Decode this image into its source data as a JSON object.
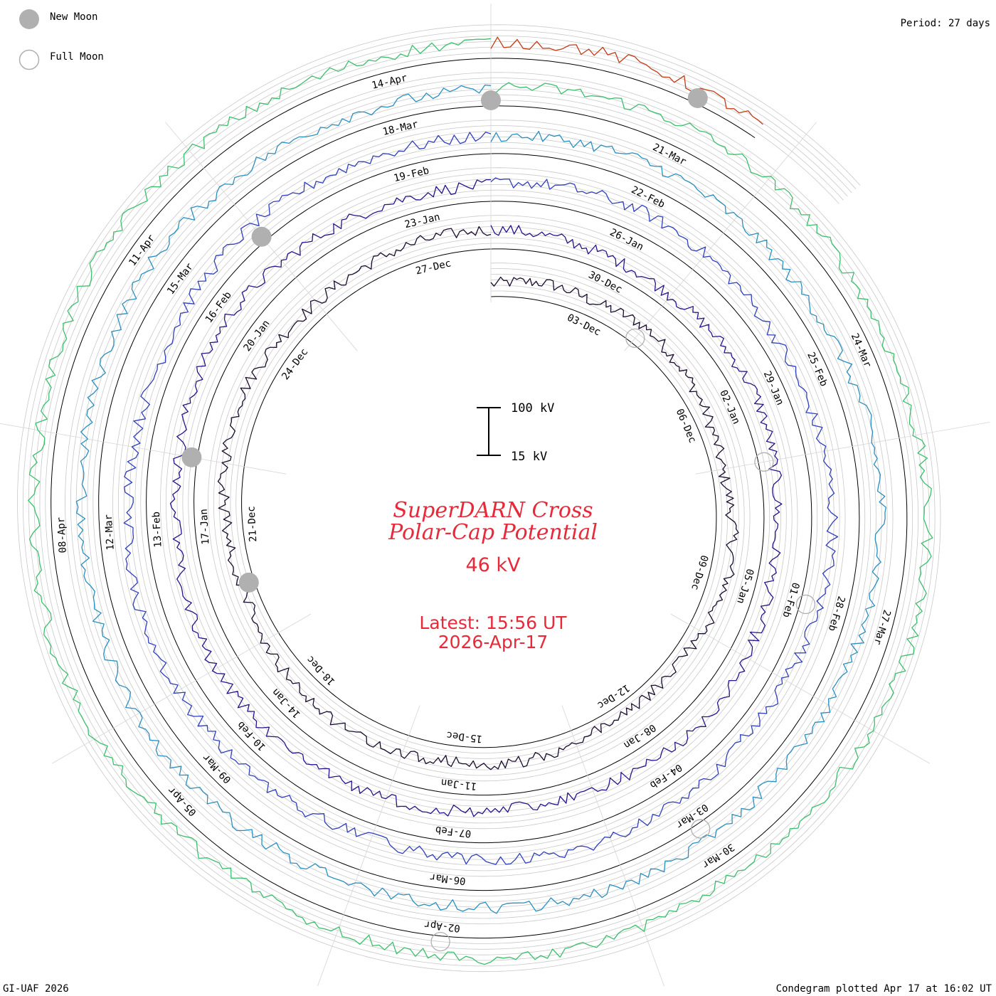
{
  "legend": {
    "new_moon_label": "New Moon",
    "full_moon_label": "Full Moon",
    "new_moon_color": "#b0b0b0"
  },
  "period_label": "Period: 27 days",
  "footer": {
    "left": "GI-UAF 2026",
    "right": "Condegram plotted Apr 17 at 16:02 UT"
  },
  "scale_bar": {
    "top_label": "100 kV",
    "bottom_label": "15 kV"
  },
  "center": {
    "title_line1": "SuperDARN Cross",
    "title_line2": "Polar-Cap Potential",
    "current_value": "46 kV",
    "latest_line": "Latest: 15:56 UT",
    "date_line": "2026-Apr-17"
  },
  "colors": {
    "title_red": "#e8293a",
    "grid": "#c8c8c8",
    "baseline": "#000000"
  },
  "chart_data": {
    "type": "line",
    "subtype": "spiral condegram",
    "title": "SuperDARN Cross Polar-Cap Potential",
    "units": "kV",
    "period_days": 27,
    "y_range_kv": [
      15,
      100
    ],
    "start_date": "2025-12-01",
    "end_date": "2026-04-17",
    "latest_value_kv": 46,
    "cycles": [
      {
        "cycle": 1,
        "color": "#1a0b2e",
        "start": "2025-12-01",
        "ticks": [
          "03-Dec",
          "06-Dec",
          "09-Dec",
          "12-Dec",
          "15-Dec",
          "18-Dec",
          "21-Dec",
          "24-Dec",
          "27-Dec"
        ],
        "values": [
          42,
          55,
          48,
          60,
          52,
          45,
          38,
          50,
          58,
          46,
          40,
          35,
          44,
          52,
          49,
          55,
          62,
          57,
          48,
          42,
          50,
          58,
          64,
          55,
          47,
          52,
          56
        ]
      },
      {
        "cycle": 2,
        "color": "#24148a",
        "start": "2025-12-28",
        "ticks": [
          "30-Dec",
          "02-Jan",
          "05-Jan",
          "08-Jan",
          "11-Jan",
          "14-Jan",
          "17-Jan",
          "20-Jan",
          "23-Jan"
        ],
        "values": [
          58,
          52,
          47,
          44,
          50,
          56,
          48,
          42,
          46,
          52,
          60,
          55,
          48,
          45,
          52,
          58,
          62,
          66,
          70,
          64,
          58,
          55,
          62,
          68,
          60,
          54,
          50
        ]
      },
      {
        "cycle": 3,
        "color": "#2f3fbd",
        "start": "2026-01-24",
        "ticks": [
          "26-Jan",
          "29-Jan",
          "01-Feb",
          "04-Feb",
          "07-Feb",
          "10-Feb",
          "13-Feb",
          "16-Feb",
          "19-Feb"
        ],
        "values": [
          55,
          60,
          64,
          58,
          52,
          48,
          55,
          62,
          57,
          50,
          46,
          52,
          58,
          54,
          49,
          45,
          52,
          56,
          60,
          65,
          58,
          52,
          48,
          54,
          60,
          56,
          52
        ]
      },
      {
        "cycle": 4,
        "color": "#2a8fc0",
        "start": "2026-02-20",
        "ticks": [
          "22-Feb",
          "25-Feb",
          "28-Feb",
          "03-Mar",
          "06-Mar",
          "09-Mar",
          "12-Mar",
          "15-Mar",
          "18-Mar"
        ],
        "values": [
          52,
          58,
          62,
          56,
          50,
          54,
          60,
          64,
          58,
          52,
          48,
          55,
          60,
          56,
          50,
          46,
          52,
          58,
          62,
          56,
          50,
          54,
          60,
          66,
          60,
          55,
          50
        ]
      },
      {
        "cycle": 5,
        "color": "#3cbf6c",
        "start": "2026-03-19",
        "ticks": [
          "21-Mar",
          "24-Mar",
          "27-Mar",
          "30-Mar",
          "02-Apr",
          "05-Apr",
          "08-Apr",
          "11-Apr",
          "14-Apr"
        ],
        "values": [
          56,
          60,
          66,
          62,
          55,
          50,
          54,
          60,
          64,
          58,
          52,
          48,
          55,
          62,
          58,
          52,
          47,
          50,
          56,
          60,
          54,
          50,
          58,
          64,
          60,
          54,
          50
        ]
      },
      {
        "cycle": 6,
        "color": "#c23a16",
        "start": "2026-04-15",
        "ticks": [],
        "values": [
          48,
          52,
          46
        ]
      }
    ],
    "new_moon_dates": [
      "2025-12-20",
      "2026-01-18",
      "2026-02-17",
      "2026-03-19",
      "2026-04-17"
    ],
    "full_moon_dates": [
      "2025-12-04",
      "2026-01-03",
      "2026-02-01",
      "2026-03-03",
      "2026-04-02"
    ]
  }
}
